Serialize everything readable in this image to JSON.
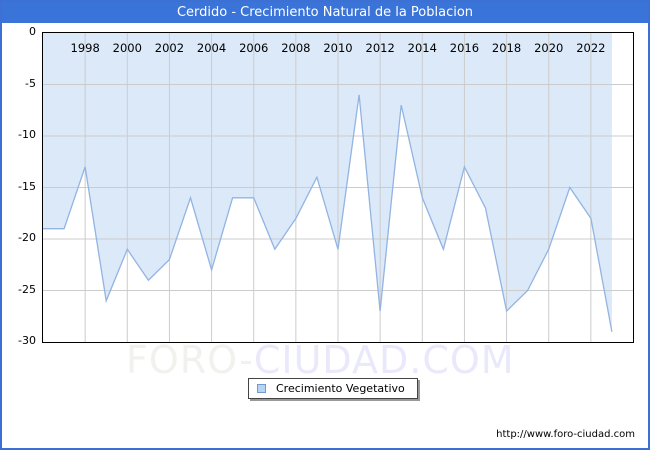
{
  "window": {
    "title": "Cerdido - Crecimiento Natural de la Poblacion",
    "footer_url": "http://www.foro-ciudad.com",
    "watermark_left": "FORO-",
    "watermark_right": "CIUDAD.COM",
    "titlebar_color": "#3b74d8",
    "border_color": "#3c70d2"
  },
  "legend": {
    "label": "Crecimiento Vegetativo",
    "marker_fill": "#b9d4f0",
    "marker_border": "#6f9bd2"
  },
  "chart_data": {
    "type": "area",
    "title": "Cerdido - Crecimiento Natural de la Poblacion",
    "series_name": "Crecimiento Vegetativo",
    "x": [
      1996,
      1997,
      1998,
      1999,
      2000,
      2001,
      2002,
      2003,
      2004,
      2005,
      2006,
      2007,
      2008,
      2009,
      2010,
      2011,
      2012,
      2013,
      2014,
      2015,
      2016,
      2017,
      2018,
      2019,
      2020,
      2021,
      2022,
      2023
    ],
    "values": [
      -19,
      -19,
      -13,
      -26,
      -21,
      -24,
      -22,
      -16,
      -23,
      -16,
      -16,
      -21,
      -18,
      -14,
      -21,
      -6,
      -27,
      -7,
      -16,
      -21,
      -13,
      -17,
      -27,
      -25,
      -21,
      -15,
      -18,
      -29
    ],
    "xlim": [
      1996,
      2024
    ],
    "ylim": [
      -30,
      0
    ],
    "x_ticks": [
      1998,
      2000,
      2002,
      2004,
      2006,
      2008,
      2010,
      2012,
      2014,
      2016,
      2018,
      2020,
      2022
    ],
    "y_ticks": [
      0,
      -5,
      -10,
      -15,
      -20,
      -25,
      -30
    ],
    "grid": true,
    "grid_color": "#cccccc",
    "line_color": "#92b4e2",
    "fill_color": "#dbe9f9",
    "legend_position": "bottom-center",
    "xlabel": "",
    "ylabel": ""
  }
}
